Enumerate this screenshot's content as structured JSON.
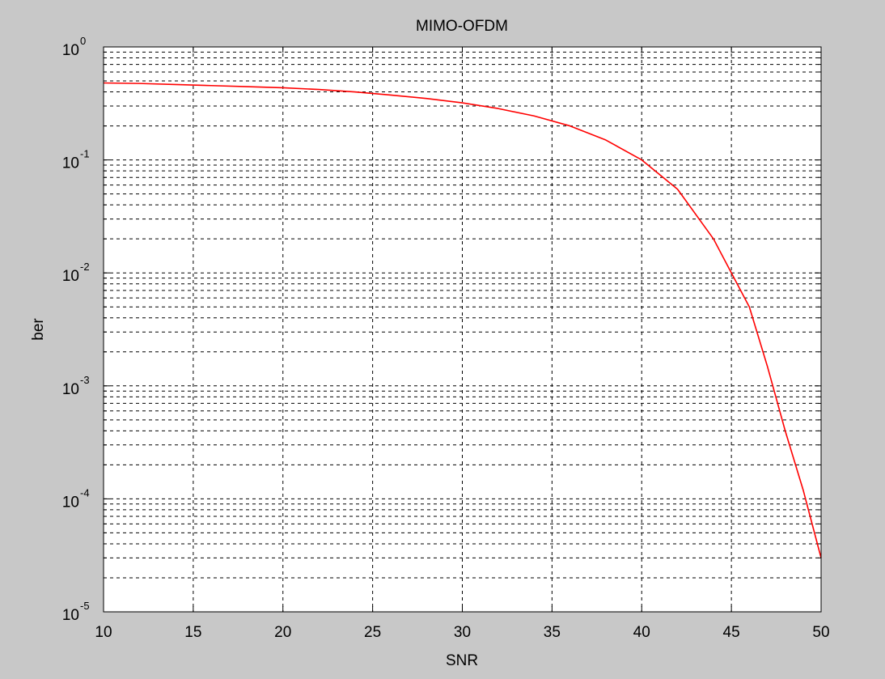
{
  "chart_data": {
    "type": "line",
    "title": "MIMO-OFDM",
    "xlabel": "SNR",
    "ylabel": "ber",
    "xlim": [
      10,
      50
    ],
    "ylim": [
      1e-05,
      1
    ],
    "yscale": "log",
    "grid": true,
    "x_ticks": [
      "10",
      "15",
      "20",
      "25",
      "30",
      "35",
      "40",
      "45",
      "50"
    ],
    "y_ticks": [
      {
        "base": "10",
        "exp": "0"
      },
      {
        "base": "10",
        "exp": "-1"
      },
      {
        "base": "10",
        "exp": "-2"
      },
      {
        "base": "10",
        "exp": "-3"
      },
      {
        "base": "10",
        "exp": "-4"
      },
      {
        "base": "10",
        "exp": "-5"
      }
    ],
    "series": [
      {
        "color": "#ff0000",
        "x": [
          10,
          12,
          14,
          16,
          18,
          20,
          22,
          24,
          26,
          28,
          30,
          32,
          34,
          36,
          38,
          40,
          42,
          44,
          45,
          46,
          47,
          48,
          49,
          50
        ],
        "y": [
          0.48,
          0.475,
          0.465,
          0.455,
          0.445,
          0.435,
          0.42,
          0.4,
          0.375,
          0.35,
          0.32,
          0.285,
          0.245,
          0.2,
          0.15,
          0.1,
          0.055,
          0.02,
          0.01,
          0.005,
          0.0015,
          0.0004,
          0.00012,
          3e-05
        ]
      }
    ]
  }
}
